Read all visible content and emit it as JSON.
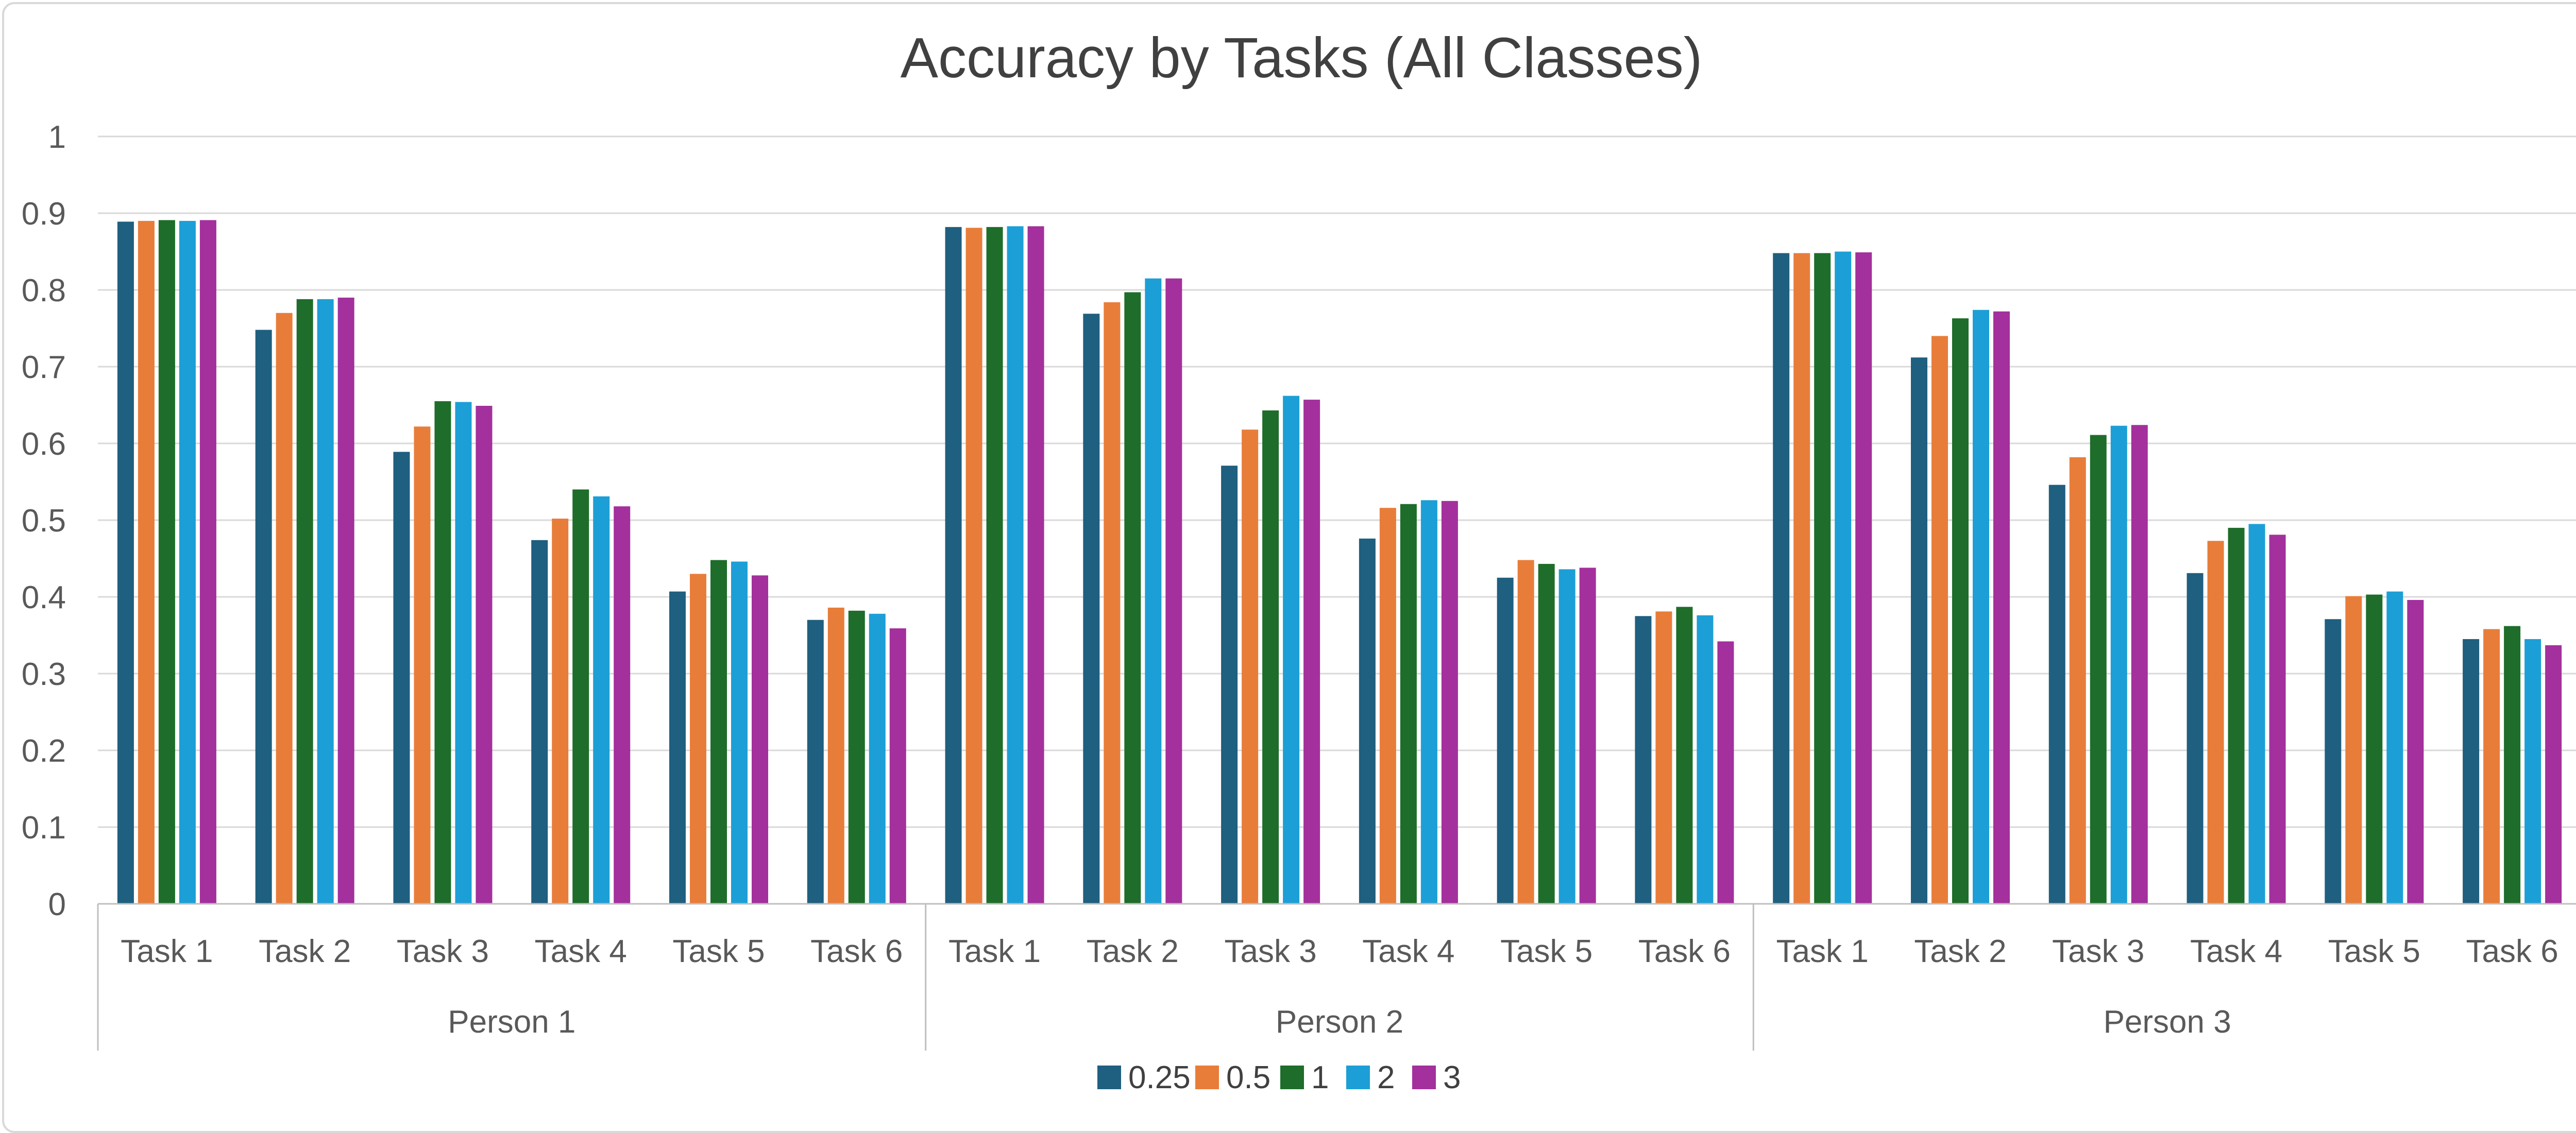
{
  "chart_data": {
    "type": "bar",
    "title": "Accuracy by Tasks (All Classes)",
    "xlabel": "",
    "ylabel": "",
    "ylim": [
      0,
      1
    ],
    "yticks": [
      "0",
      "0.1",
      "0.2",
      "0.3",
      "0.4",
      "0.5",
      "0.6",
      "0.7",
      "0.8",
      "0.9",
      "1"
    ],
    "grid": true,
    "legend_position": "bottom",
    "groups": [
      "Person 1",
      "Person 2",
      "Person 3"
    ],
    "categories": [
      "Task 1",
      "Task 2",
      "Task 3",
      "Task 4",
      "Task 5",
      "Task 6",
      "Task 1",
      "Task 2",
      "Task 3",
      "Task 4",
      "Task 5",
      "Task 6",
      "Task 1",
      "Task 2",
      "Task 3",
      "Task 4",
      "Task 5",
      "Task 6"
    ],
    "series": [
      {
        "name": "0.25",
        "color": "#1f5f7f",
        "values": [
          0.889,
          0.748,
          0.589,
          0.474,
          0.407,
          0.37,
          0.882,
          0.769,
          0.571,
          0.476,
          0.425,
          0.375,
          0.848,
          0.712,
          0.546,
          0.431,
          0.371,
          0.345
        ]
      },
      {
        "name": "0.5",
        "color": "#e87d3a",
        "values": [
          0.89,
          0.77,
          0.622,
          0.502,
          0.43,
          0.386,
          0.881,
          0.784,
          0.618,
          0.516,
          0.448,
          0.381,
          0.848,
          0.74,
          0.582,
          0.473,
          0.401,
          0.358
        ]
      },
      {
        "name": "1",
        "color": "#1e6d2a",
        "values": [
          0.891,
          0.788,
          0.655,
          0.54,
          0.448,
          0.382,
          0.882,
          0.797,
          0.643,
          0.521,
          0.443,
          0.387,
          0.848,
          0.763,
          0.611,
          0.49,
          0.403,
          0.362
        ]
      },
      {
        "name": "2",
        "color": "#1c9fd6",
        "values": [
          0.89,
          0.788,
          0.654,
          0.531,
          0.446,
          0.378,
          0.883,
          0.815,
          0.662,
          0.526,
          0.436,
          0.376,
          0.85,
          0.774,
          0.623,
          0.495,
          0.407,
          0.345
        ]
      },
      {
        "name": "3",
        "color": "#a3309c",
        "values": [
          0.891,
          0.79,
          0.649,
          0.518,
          0.428,
          0.359,
          0.883,
          0.815,
          0.657,
          0.525,
          0.438,
          0.342,
          0.849,
          0.772,
          0.624,
          0.481,
          0.396,
          0.337
        ]
      }
    ]
  },
  "colors": {
    "gridline": "#d9d9d9",
    "axis": "#bfbfbf",
    "text": "#595959",
    "title": "#404040"
  }
}
